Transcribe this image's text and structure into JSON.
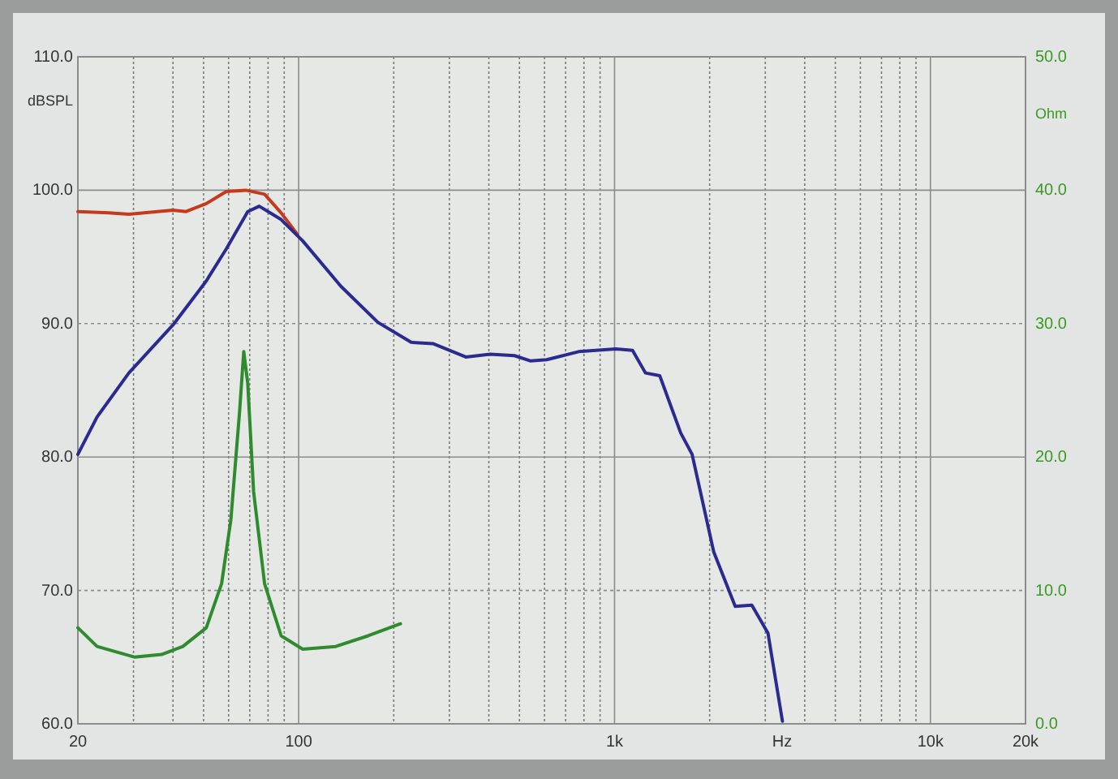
{
  "chart_data": {
    "type": "line",
    "xlabel": "Hz",
    "ylabel": "dBSPL",
    "y2label": "Ohm",
    "log": "x",
    "grid": true,
    "xlim": [
      20,
      20000
    ],
    "ylim": [
      60,
      110
    ],
    "y2lim": [
      0,
      50
    ],
    "xticks": [
      20,
      {
        "value": 30,
        "label": null
      },
      {
        "value": 40,
        "label": null
      },
      {
        "value": 50,
        "label": null
      },
      {
        "value": 60,
        "label": null
      },
      {
        "value": 70,
        "label": null
      },
      {
        "value": 80,
        "label": null
      },
      {
        "value": 90,
        "label": null
      },
      100,
      {
        "value": 200,
        "label": null
      },
      {
        "value": 300,
        "label": null
      },
      {
        "value": 400,
        "label": null
      },
      {
        "value": 500,
        "label": null
      },
      {
        "value": 600,
        "label": null
      },
      {
        "value": 700,
        "label": null
      },
      {
        "value": 800,
        "label": null
      },
      {
        "value": 900,
        "label": null
      },
      {
        "value": 1000,
        "label": "1k"
      },
      {
        "value": 2000,
        "label": null
      },
      {
        "value": 3000,
        "label": null
      },
      {
        "value": 4000,
        "label": null
      },
      {
        "value": 5000,
        "label": null
      },
      {
        "value": 6000,
        "label": null
      },
      {
        "value": 7000,
        "label": null
      },
      {
        "value": 8000,
        "label": null
      },
      {
        "value": 9000,
        "label": null
      },
      {
        "value": 10000,
        "label": "10k"
      },
      {
        "value": 20000,
        "label": "20k"
      }
    ],
    "yticks": [
      {
        "value": 60,
        "label": "60.0"
      },
      {
        "value": 70,
        "label": "70.0"
      },
      {
        "value": 80,
        "label": "80.0"
      },
      {
        "value": 90,
        "label": "90.0"
      },
      {
        "value": 100,
        "label": "100.0"
      },
      {
        "value": 110,
        "label": "110.0"
      }
    ],
    "y2ticks": [
      {
        "value": 0,
        "label": "0.0"
      },
      {
        "value": 10,
        "label": "10.0"
      },
      {
        "value": 20,
        "label": "20.0"
      },
      {
        "value": 30,
        "label": "30.0"
      },
      {
        "value": 40,
        "label": "40.0"
      },
      {
        "value": 50,
        "label": "50.0"
      }
    ],
    "series": [
      {
        "color": "#c8381c",
        "x": [
          20,
          25,
          29,
          40,
          44,
          51,
          59,
          68,
          78,
          88,
          99
        ],
        "values": [
          98.4,
          98.3,
          98.2,
          98.5,
          98.4,
          99.0,
          99.9,
          100.0,
          99.7,
          98.3,
          96.7
        ]
      },
      {
        "color": "#2a2a90",
        "x": [
          20,
          23,
          29,
          40,
          51,
          59,
          69,
          75,
          88,
          103,
          136,
          178,
          227,
          266,
          338,
          404,
          482,
          543,
          610,
          770,
          1009,
          1140,
          1253,
          1390,
          1620,
          1760,
          2060,
          2410,
          2720,
          3060,
          3400
        ],
        "values": [
          80.2,
          83.0,
          86.3,
          89.9,
          93.2,
          95.6,
          98.4,
          98.8,
          97.8,
          96.2,
          92.8,
          90.1,
          88.6,
          88.5,
          87.5,
          87.7,
          87.6,
          87.2,
          87.3,
          87.9,
          88.1,
          88.0,
          86.3,
          86.1,
          81.8,
          80.2,
          72.9,
          68.8,
          68.9,
          66.8,
          60.2
        ]
      },
      {
        "color": "#2e8b2e",
        "axis": "y2",
        "x": [
          20,
          23,
          30.3,
          36.8,
          43,
          51,
          57,
          61,
          65,
          67,
          69,
          72,
          78,
          88,
          103,
          131,
          166,
          210
        ],
        "values": [
          7.2,
          5.8,
          5.0,
          5.2,
          5.8,
          7.2,
          10.5,
          15.3,
          23.4,
          27.9,
          25.5,
          17.4,
          10.5,
          6.6,
          5.6,
          5.8,
          6.6,
          7.5
        ]
      }
    ]
  }
}
